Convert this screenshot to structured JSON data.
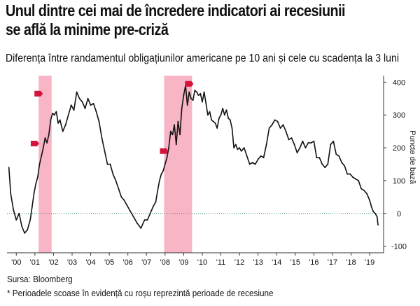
{
  "title_line1": "Unul dintre cei mai de încredere indicatori ai recesiunii",
  "title_line2": "se află la minime pre-criză",
  "subtitle": "Diferența între randamentul obligațiunilor americane pe 10 ani și cele cu scadența la 3 luni",
  "source": "Sursa: Bloomberg",
  "footnote": "* Perioadele scoase în evidență cu roșu reprezintă perioade de recesiune",
  "colors": {
    "recession_band": "#f7b5c6",
    "line": "#111111",
    "zero_line": "#2e8b57",
    "marker": "#d4143c"
  },
  "chart_data": {
    "type": "line",
    "ylabel": "Puncte de bază",
    "ylim": [
      -120,
      420
    ],
    "y_ticks": [
      -100,
      0,
      100,
      200,
      300,
      400
    ],
    "y_tick_labels": [
      "-100",
      "0",
      "100",
      "200",
      "300",
      "400"
    ],
    "x_ticks": [
      2000,
      2001,
      2002,
      2003,
      2004,
      2005,
      2006,
      2007,
      2008,
      2009,
      2010,
      2011,
      2012,
      2013,
      2014,
      2015,
      2016,
      2017,
      2018,
      2019
    ],
    "x_tick_labels": [
      "'00",
      "'01",
      "'02",
      "'03",
      "'04",
      "'05",
      "'06",
      "'07",
      "'08",
      "'09",
      "'10",
      "'11",
      "'12",
      "'13",
      "'14",
      "'15",
      "'16",
      "'17",
      "'18",
      "'19"
    ],
    "xlim": [
      1999.5,
      2019.75
    ],
    "recessions": [
      [
        2001.2,
        2001.9
      ],
      [
        2007.95,
        2009.45
      ]
    ],
    "markers": [
      [
        2001.0,
        213
      ],
      [
        2001.2,
        365
      ],
      [
        2007.95,
        190
      ],
      [
        2009.3,
        395
      ]
    ],
    "zero_line": 0,
    "series": [
      {
        "x": [
          1999.6,
          1999.7,
          1999.85,
          2000.0,
          2000.15,
          2000.3,
          2000.45,
          2000.6,
          2000.75,
          2000.85,
          2000.95,
          2001.05,
          2001.15,
          2001.25,
          2001.35,
          2001.45,
          2001.55,
          2001.65,
          2001.75,
          2001.85,
          2001.95,
          2002.05,
          2002.15,
          2002.25,
          2002.35,
          2002.5,
          2002.65,
          2002.8,
          2002.95,
          2003.1,
          2003.25,
          2003.4,
          2003.55,
          2003.7,
          2003.85,
          2004.0,
          2004.15,
          2004.3,
          2004.45,
          2004.6,
          2004.75,
          2004.9,
          2005.05,
          2005.2,
          2005.35,
          2005.5,
          2005.65,
          2005.8,
          2005.95,
          2006.1,
          2006.3,
          2006.5,
          2006.7,
          2006.9,
          2007.05,
          2007.2,
          2007.35,
          2007.5,
          2007.6,
          2007.7,
          2007.8,
          2007.9,
          2008.0,
          2008.1,
          2008.2,
          2008.3,
          2008.4,
          2008.5,
          2008.6,
          2008.7,
          2008.8,
          2008.9,
          2009.0,
          2009.1,
          2009.2,
          2009.3,
          2009.4,
          2009.5,
          2009.6,
          2009.7,
          2009.8,
          2009.9,
          2010.0,
          2010.1,
          2010.2,
          2010.3,
          2010.4,
          2010.5,
          2010.6,
          2010.7,
          2010.8,
          2010.9,
          2011.0,
          2011.1,
          2011.2,
          2011.3,
          2011.4,
          2011.5,
          2011.6,
          2011.7,
          2011.8,
          2011.9,
          2012.0,
          2012.1,
          2012.25,
          2012.4,
          2012.55,
          2012.7,
          2012.85,
          2013.0,
          2013.15,
          2013.3,
          2013.45,
          2013.6,
          2013.75,
          2013.9,
          2014.05,
          2014.2,
          2014.35,
          2014.5,
          2014.65,
          2014.8,
          2014.95,
          2015.1,
          2015.25,
          2015.4,
          2015.55,
          2015.7,
          2015.85,
          2016.0,
          2016.15,
          2016.3,
          2016.45,
          2016.6,
          2016.75,
          2016.9,
          2017.05,
          2017.2,
          2017.35,
          2017.5,
          2017.65,
          2017.8,
          2017.95,
          2018.1,
          2018.25,
          2018.4,
          2018.55,
          2018.7,
          2018.85,
          2019.0,
          2019.1,
          2019.2,
          2019.3,
          2019.4,
          2019.45
        ],
        "y": [
          140,
          60,
          10,
          -20,
          0,
          -40,
          -60,
          -50,
          -20,
          20,
          60,
          90,
          110,
          150,
          175,
          200,
          230,
          215,
          240,
          285,
          305,
          300,
          310,
          275,
          285,
          250,
          270,
          300,
          330,
          315,
          370,
          350,
          340,
          320,
          350,
          330,
          335,
          310,
          280,
          230,
          190,
          150,
          150,
          120,
          100,
          75,
          50,
          40,
          25,
          10,
          -10,
          -30,
          -45,
          -20,
          -20,
          0,
          20,
          35,
          70,
          100,
          120,
          130,
          150,
          170,
          200,
          250,
          240,
          270,
          210,
          280,
          240,
          320,
          360,
          390,
          330,
          370,
          350,
          345,
          375,
          370,
          360,
          365,
          340,
          370,
          335,
          300,
          310,
          285,
          280,
          275,
          260,
          290,
          300,
          320,
          300,
          315,
          290,
          285,
          260,
          200,
          210,
          195,
          200,
          190,
          200,
          175,
          150,
          155,
          150,
          165,
          175,
          170,
          210,
          260,
          270,
          285,
          280,
          260,
          270,
          250,
          225,
          230,
          210,
          185,
          200,
          220,
          200,
          215,
          215,
          220,
          170,
          170,
          150,
          140,
          150,
          210,
          220,
          180,
          175,
          155,
          145,
          120,
          120,
          110,
          105,
          100,
          75,
          70,
          60,
          40,
          20,
          5,
          0,
          -10,
          -35
        ]
      }
    ]
  }
}
